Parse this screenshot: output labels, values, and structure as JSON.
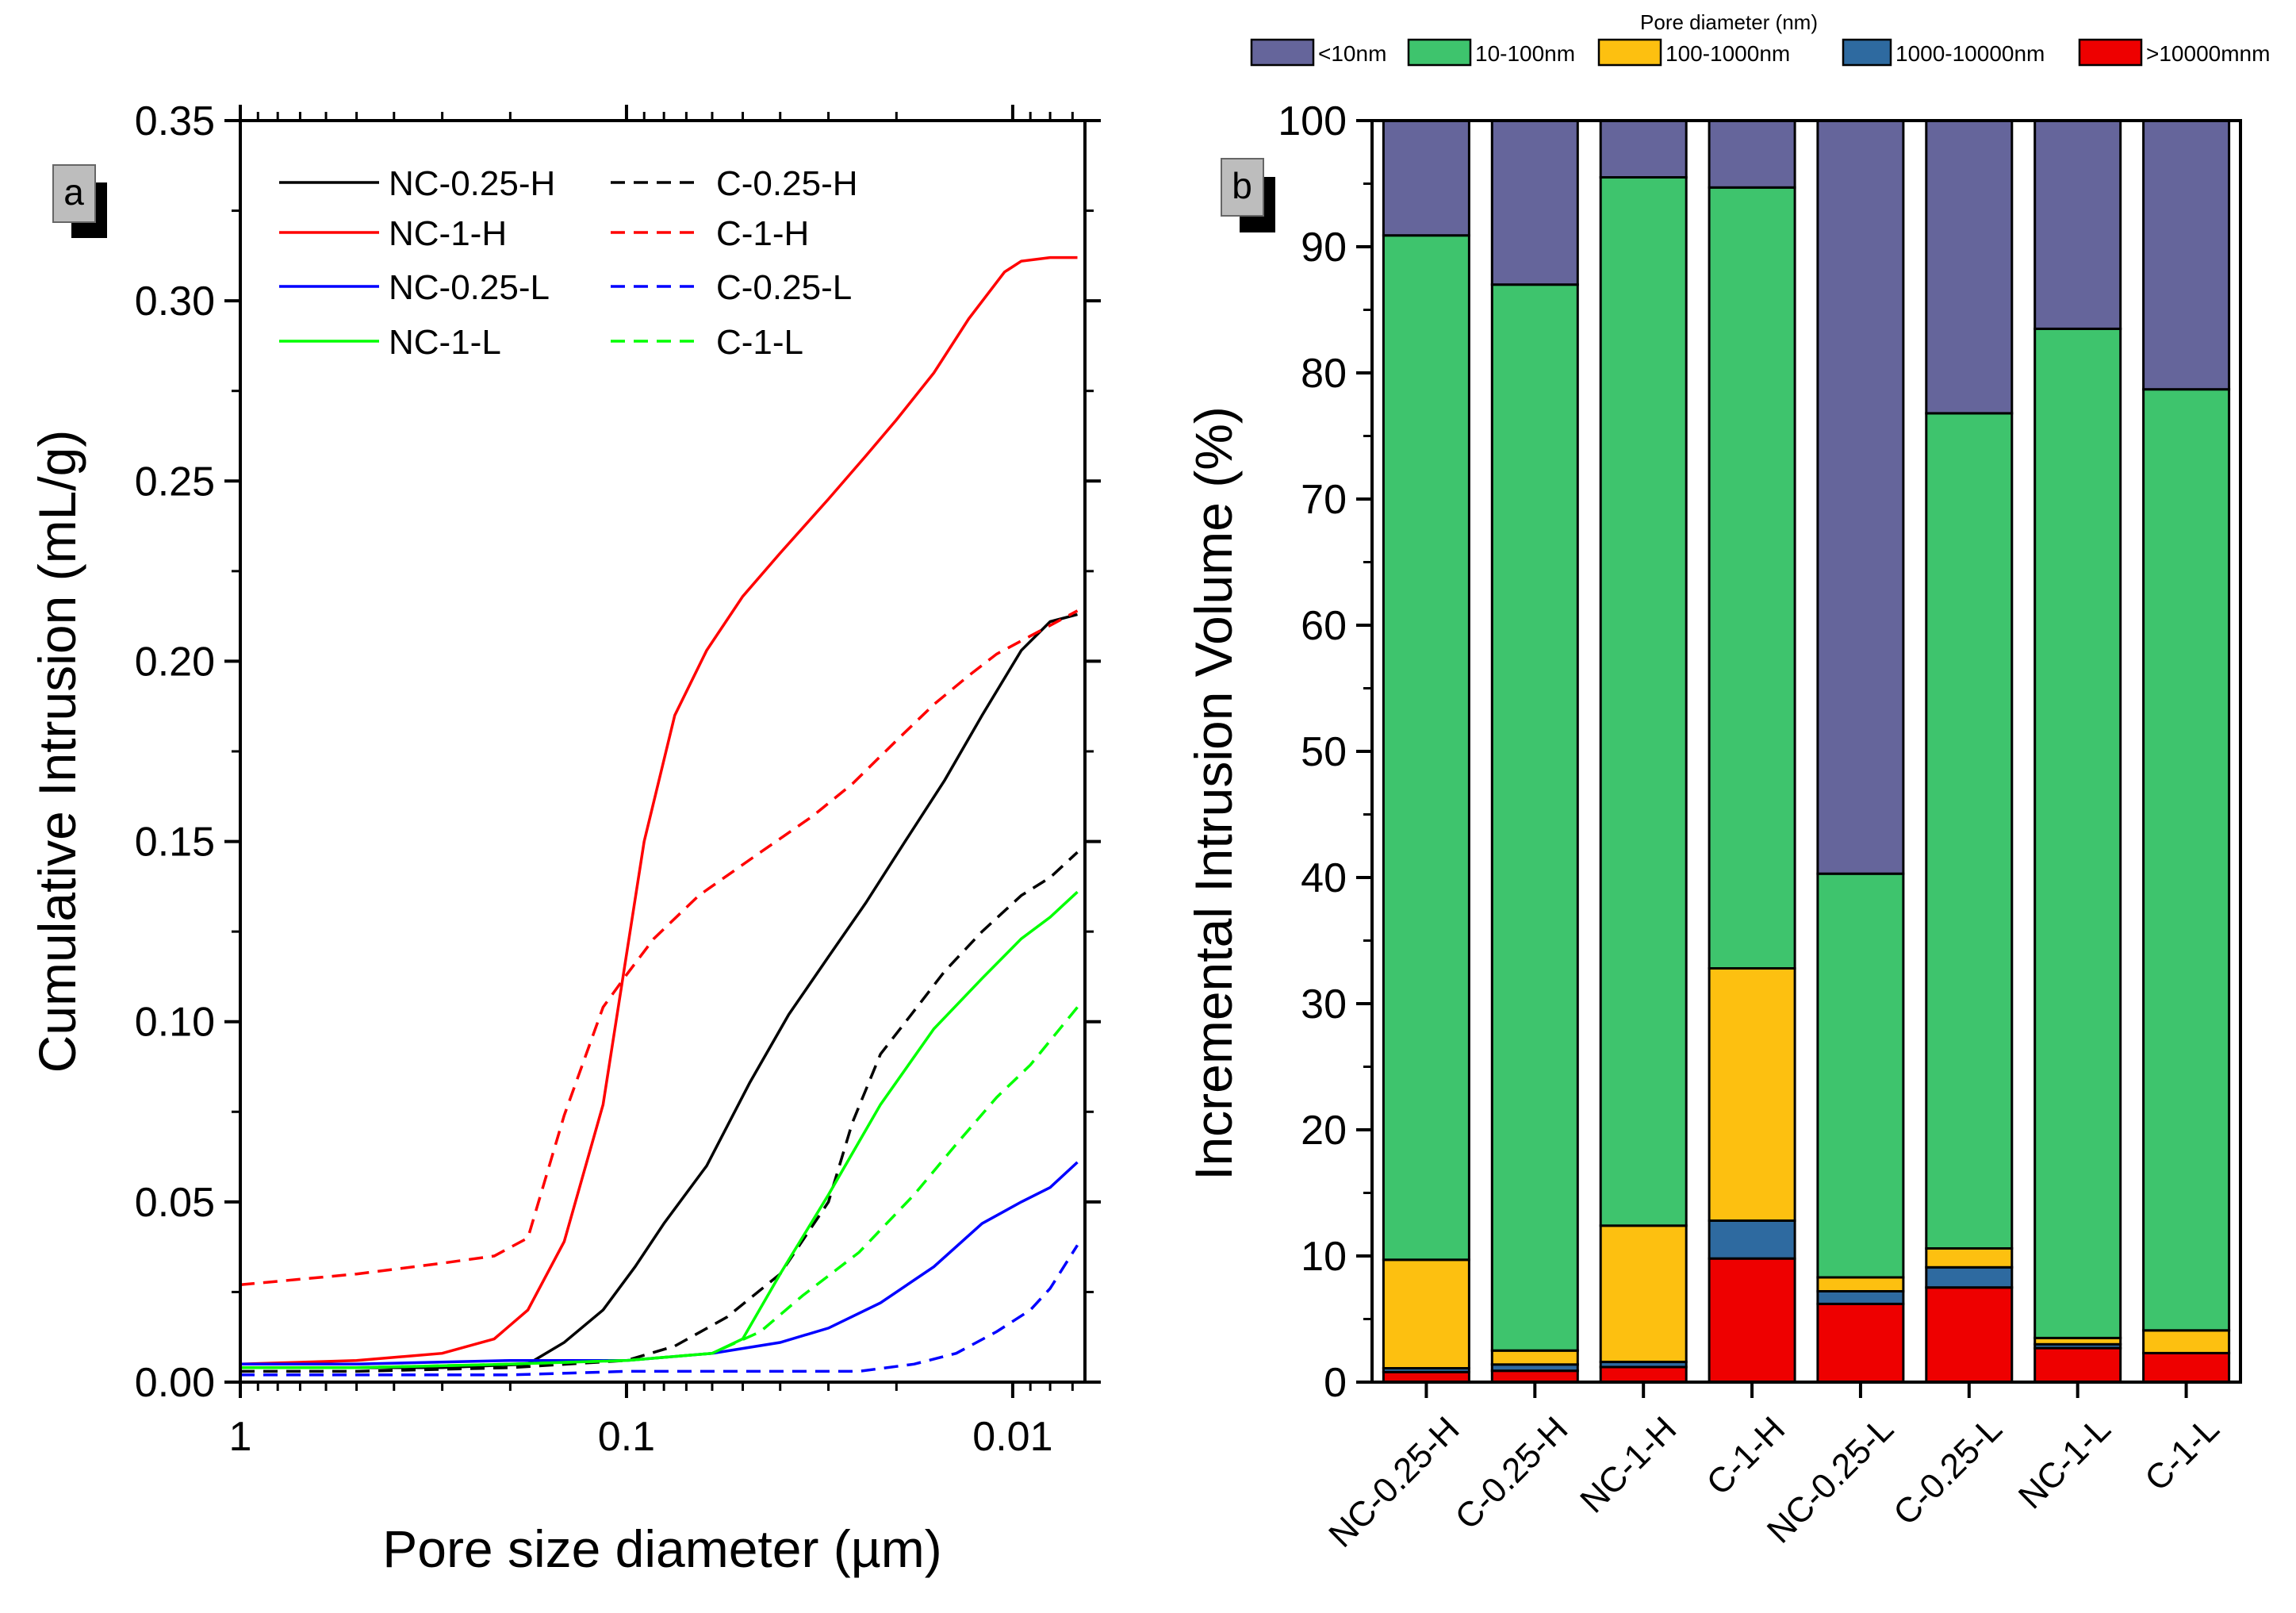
{
  "chart_data": [
    {
      "panel": "a",
      "type": "line",
      "xlabel": "Pore size diameter (µm)",
      "ylabel": "Cumulative Intrusion (mL/g)",
      "xscale": "log-reversed",
      "xlim": [
        1,
        0.0065
      ],
      "ylim": [
        0,
        0.35
      ],
      "xticks": [
        {
          "v": 1,
          "label": "1"
        },
        {
          "v": 0.1,
          "label": "0.1"
        },
        {
          "v": 0.01,
          "label": "0.01"
        }
      ],
      "yticks": [
        {
          "v": 0.0,
          "label": "0.00"
        },
        {
          "v": 0.05,
          "label": "0.05"
        },
        {
          "v": 0.1,
          "label": "0.10"
        },
        {
          "v": 0.15,
          "label": "0.15"
        },
        {
          "v": 0.2,
          "label": "0.20"
        },
        {
          "v": 0.25,
          "label": "0.25"
        },
        {
          "v": 0.3,
          "label": "0.30"
        },
        {
          "v": 0.35,
          "label": "0.35"
        }
      ],
      "legend_position": "top-left",
      "series": [
        {
          "name": "NC-0.25-H",
          "color": "#000000",
          "dash": "solid",
          "x": [
            1,
            0.5,
            0.3,
            0.18,
            0.145,
            0.115,
            0.095,
            0.08,
            0.062,
            0.048,
            0.038,
            0.03,
            0.024,
            0.019,
            0.015,
            0.012,
            0.0095,
            0.008,
            0.0068
          ],
          "y": [
            0.004,
            0.004,
            0.004,
            0.005,
            0.011,
            0.02,
            0.032,
            0.044,
            0.06,
            0.083,
            0.102,
            0.118,
            0.133,
            0.15,
            0.167,
            0.185,
            0.203,
            0.211,
            0.213
          ]
        },
        {
          "name": "C-0.25-H",
          "color": "#000000",
          "dash": "dashed",
          "x": [
            1,
            0.5,
            0.2,
            0.1,
            0.075,
            0.055,
            0.04,
            0.03,
            0.026,
            0.022,
            0.018,
            0.015,
            0.012,
            0.0095,
            0.008,
            0.0068
          ],
          "y": [
            0.003,
            0.003,
            0.004,
            0.006,
            0.01,
            0.018,
            0.03,
            0.05,
            0.072,
            0.091,
            0.103,
            0.114,
            0.125,
            0.135,
            0.14,
            0.147
          ]
        },
        {
          "name": "NC-1-H",
          "color": "#ff0000",
          "dash": "solid",
          "x": [
            1,
            0.5,
            0.3,
            0.22,
            0.18,
            0.145,
            0.115,
            0.09,
            0.075,
            0.062,
            0.05,
            0.04,
            0.03,
            0.024,
            0.02,
            0.016,
            0.013,
            0.0105,
            0.0095,
            0.008,
            0.0068
          ],
          "y": [
            0.005,
            0.006,
            0.008,
            0.012,
            0.02,
            0.039,
            0.077,
            0.15,
            0.185,
            0.203,
            0.218,
            0.23,
            0.245,
            0.257,
            0.267,
            0.28,
            0.295,
            0.308,
            0.311,
            0.312,
            0.312
          ]
        },
        {
          "name": "C-1-H",
          "color": "#ff0000",
          "dash": "dashed",
          "x": [
            1,
            0.5,
            0.3,
            0.22,
            0.18,
            0.145,
            0.115,
            0.1,
            0.085,
            0.065,
            0.045,
            0.033,
            0.026,
            0.02,
            0.016,
            0.013,
            0.011,
            0.009,
            0.0068
          ],
          "y": [
            0.027,
            0.03,
            0.033,
            0.035,
            0.04,
            0.074,
            0.104,
            0.113,
            0.123,
            0.135,
            0.147,
            0.157,
            0.166,
            0.178,
            0.188,
            0.196,
            0.202,
            0.207,
            0.214
          ]
        },
        {
          "name": "NC-0.25-L",
          "color": "#0000ff",
          "dash": "solid",
          "x": [
            1,
            0.5,
            0.2,
            0.1,
            0.06,
            0.04,
            0.03,
            0.022,
            0.016,
            0.012,
            0.0095,
            0.008,
            0.0068
          ],
          "y": [
            0.005,
            0.005,
            0.006,
            0.006,
            0.008,
            0.011,
            0.015,
            0.022,
            0.032,
            0.044,
            0.05,
            0.054,
            0.061
          ]
        },
        {
          "name": "C-0.25-L",
          "color": "#0000ff",
          "dash": "dashed",
          "x": [
            1,
            0.5,
            0.2,
            0.1,
            0.05,
            0.025,
            0.018,
            0.014,
            0.011,
            0.009,
            0.008,
            0.0068
          ],
          "y": [
            0.002,
            0.002,
            0.002,
            0.003,
            0.003,
            0.003,
            0.005,
            0.008,
            0.014,
            0.02,
            0.026,
            0.038
          ]
        },
        {
          "name": "NC-1-L",
          "color": "#00ff00",
          "dash": "solid",
          "x": [
            1,
            0.5,
            0.2,
            0.1,
            0.06,
            0.05,
            0.04,
            0.03,
            0.022,
            0.016,
            0.012,
            0.0095,
            0.008,
            0.0068
          ],
          "y": [
            0.004,
            0.004,
            0.005,
            0.006,
            0.008,
            0.012,
            0.03,
            0.052,
            0.077,
            0.098,
            0.112,
            0.123,
            0.129,
            0.136
          ]
        },
        {
          "name": "C-1-L",
          "color": "#00ff00",
          "dash": "dashed",
          "x": [
            1,
            0.5,
            0.2,
            0.1,
            0.06,
            0.045,
            0.035,
            0.025,
            0.018,
            0.014,
            0.011,
            0.009,
            0.0068
          ],
          "y": [
            0.004,
            0.004,
            0.005,
            0.006,
            0.008,
            0.014,
            0.024,
            0.036,
            0.052,
            0.066,
            0.079,
            0.088,
            0.104
          ]
        }
      ]
    },
    {
      "panel": "b",
      "type": "bar",
      "stacked": true,
      "ylabel": "Incremental Intrusion Volume (%)",
      "ylim": [
        0,
        100
      ],
      "yticks": [
        0,
        10,
        20,
        30,
        40,
        50,
        60,
        70,
        80,
        90,
        100
      ],
      "legend_title": "Pore diameter (nm)",
      "legend_position": "top",
      "categories": [
        "NC-0.25-H",
        "C-0.25-H",
        "NC-1-H",
        "C-1-H",
        "NC-0.25-L",
        "C-0.25-L",
        "NC-1-L",
        "C-1-L"
      ],
      "series": [
        {
          "name": ">10000mnm",
          "color": "#ee0000",
          "values": [
            0.8,
            0.9,
            1.2,
            9.8,
            6.2,
            7.5,
            2.7,
            2.3
          ]
        },
        {
          "name": "1000-10000nm",
          "color": "#2e6aa0",
          "values": [
            0.3,
            0.5,
            0.4,
            3.0,
            1.0,
            1.6,
            0.3,
            0.0
          ]
        },
        {
          "name": "100-1000nm",
          "color": "#fdc010",
          "values": [
            8.6,
            1.1,
            10.8,
            20.0,
            1.1,
            1.5,
            0.5,
            1.8
          ]
        },
        {
          "name": "10-100nm",
          "color": "#3ec46d",
          "values": [
            81.2,
            84.5,
            83.1,
            61.9,
            32.0,
            66.2,
            80.0,
            74.6
          ]
        },
        {
          "name": "<10nm",
          "color": "#65659b",
          "values": [
            9.1,
            13.0,
            4.5,
            5.3,
            59.7,
            23.2,
            16.5,
            21.3
          ]
        }
      ],
      "legend_order": [
        "<10nm",
        "10-100nm",
        "100-1000nm",
        "1000-10000nm",
        ">10000mnm"
      ]
    }
  ],
  "panel_labels": {
    "a": "a",
    "b": "b"
  }
}
